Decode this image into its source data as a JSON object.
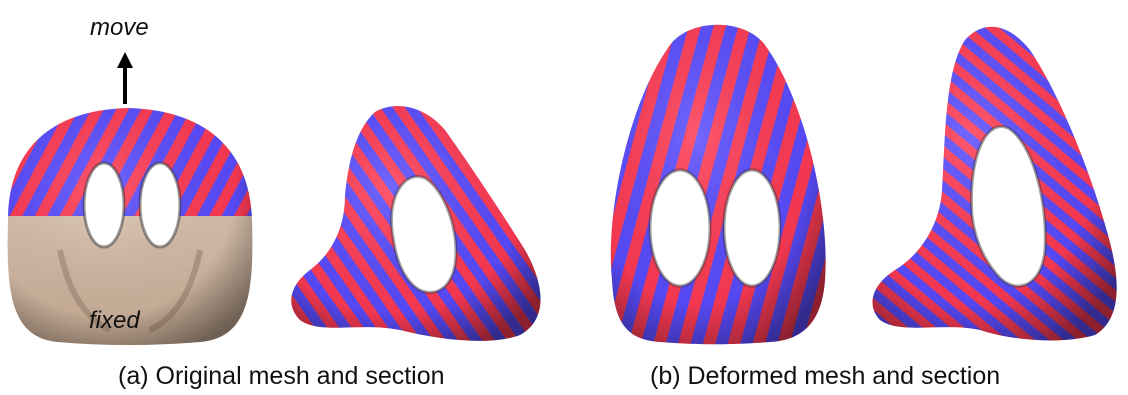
{
  "figure": {
    "captions": {
      "a": "(a) Original mesh and section",
      "b": "(b) Deformed mesh and section"
    },
    "annotations": {
      "move": "move",
      "fixed": "fixed"
    },
    "colors": {
      "stripe_red": "#ff3b55",
      "stripe_blue": "#5a4cff",
      "fixed_region": "#dcc3ad",
      "arrow": "#000000"
    }
  }
}
